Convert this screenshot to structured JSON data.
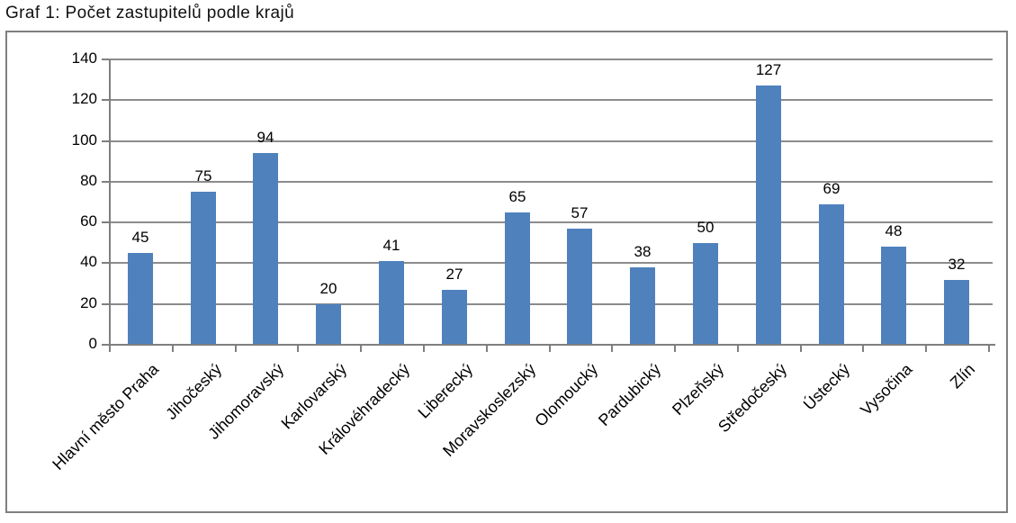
{
  "colors": {
    "bar": "#4f81bd",
    "grid": "#8c8c8c",
    "axis": "#7f7f7f",
    "border": "#7f7f7f"
  },
  "chart_data": {
    "type": "bar",
    "title": "Graf 1: Počet zastupitelů podle krajů",
    "categories": [
      "Hlavní město Praha",
      "Jihočeský",
      "Jihomoravský",
      "Karlovarský",
      "Královéhradecký",
      "Liberecký",
      "Moravskoslezský",
      "Olomoucký",
      "Pardubický",
      "Plzeňský",
      "Středočeský",
      "Ústecký",
      "Vysočina",
      "Zlín"
    ],
    "values": [
      45,
      75,
      94,
      20,
      41,
      27,
      65,
      57,
      38,
      50,
      127,
      69,
      48,
      32
    ],
    "xlabel": "",
    "ylabel": "",
    "ylim": [
      0,
      140
    ],
    "ytick_step": 20,
    "grid": true,
    "data_labels": true,
    "legend": "none",
    "bar_color": "#4f81bd"
  }
}
